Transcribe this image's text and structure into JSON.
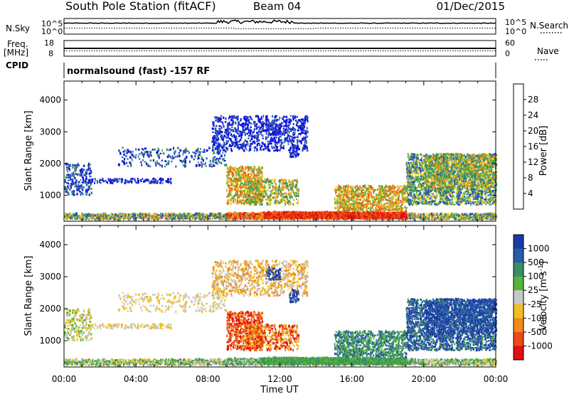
{
  "header": {
    "station": "South Pole Station (fitACF)",
    "beam": "Beam 04",
    "date": "01/Dec/2015"
  },
  "panels": {
    "nsky_label": "N.Sky",
    "nsearch_label": "N.Search",
    "freq_label_1": "Freq.",
    "freq_label_2": "[MHz]",
    "nave_label": "Nave",
    "cpid_label": "CPID",
    "cpid_text": "normalsound (fast) -157 RF",
    "noise_left_top": "10^5",
    "noise_left_bottom": "10^0",
    "noise_right_top": "10^5",
    "noise_right_bottom": "10^0",
    "freq_left_top": "18",
    "freq_left_bottom": "8",
    "nave_right_top": "60",
    "nave_right_bottom": "0"
  },
  "chart_data": [
    {
      "type": "heatmap",
      "title": "",
      "xlabel": "",
      "ylabel": "Slant Range [km]",
      "x_ticks": [
        "00:00",
        "04:00",
        "08:00",
        "12:00",
        "16:00",
        "20:00",
        "00:00"
      ],
      "y_ticks": [
        1000,
        2000,
        3000,
        4000
      ],
      "ylim": [
        180,
        4600
      ],
      "colorbar": {
        "label": "Power [dB]",
        "ticks": [
          4,
          8,
          12,
          16,
          20,
          24,
          28
        ],
        "colors": [
          "#1010e0",
          "#2a52b4",
          "#3a8c6c",
          "#58b044",
          "#e8c41e",
          "#f09018",
          "#ec5a14",
          "#e01010"
        ]
      },
      "features": [
        {
          "start_ut": "00:00",
          "end_ut": "24:00",
          "range_km": [
            200,
            600
          ],
          "value": "8-28 dB"
        },
        {
          "start_ut": "11:00",
          "end_ut": "19:00",
          "range_km": [
            250,
            500
          ],
          "value": "28 dB"
        },
        {
          "start_ut": "08:00",
          "end_ut": "13:30",
          "range_km": [
            2500,
            3500
          ],
          "value": "4-8 dB"
        },
        {
          "start_ut": "19:00",
          "end_ut": "24:00",
          "range_km": [
            700,
            2300
          ],
          "value": "8-16 dB"
        }
      ]
    },
    {
      "type": "heatmap",
      "title": "",
      "xlabel": "Time UT",
      "ylabel": "Slant Range [km]",
      "x_ticks": [
        "00:00",
        "04:00",
        "08:00",
        "12:00",
        "16:00",
        "20:00",
        "00:00"
      ],
      "y_ticks": [
        1000,
        2000,
        3000,
        4000
      ],
      "ylim": [
        180,
        4600
      ],
      "colorbar": {
        "label": "Velocity [m s^-1]",
        "ticks": [
          "1000",
          "500",
          "100",
          "25",
          "-25",
          "-100",
          "-500",
          "-1000"
        ],
        "colors": [
          "#1a3aa8",
          "#2a5aa8",
          "#3c8c64",
          "#52b43c",
          "#c8c8c8",
          "#f0c020",
          "#f08a18",
          "#ec4a14",
          "#e01010"
        ]
      },
      "features": [
        {
          "start_ut": "09:00",
          "end_ut": "10:30",
          "range_km": [
            800,
            1900
          ],
          "value": "-500 to -1000 m/s"
        },
        {
          "start_ut": "11:00",
          "end_ut": "19:00",
          "range_km": [
            250,
            600
          ],
          "value": "100 to 500 m/s"
        },
        {
          "start_ut": "20:00",
          "end_ut": "24:00",
          "range_km": [
            700,
            2300
          ],
          "value": "500 to 1000 m/s"
        }
      ]
    }
  ]
}
